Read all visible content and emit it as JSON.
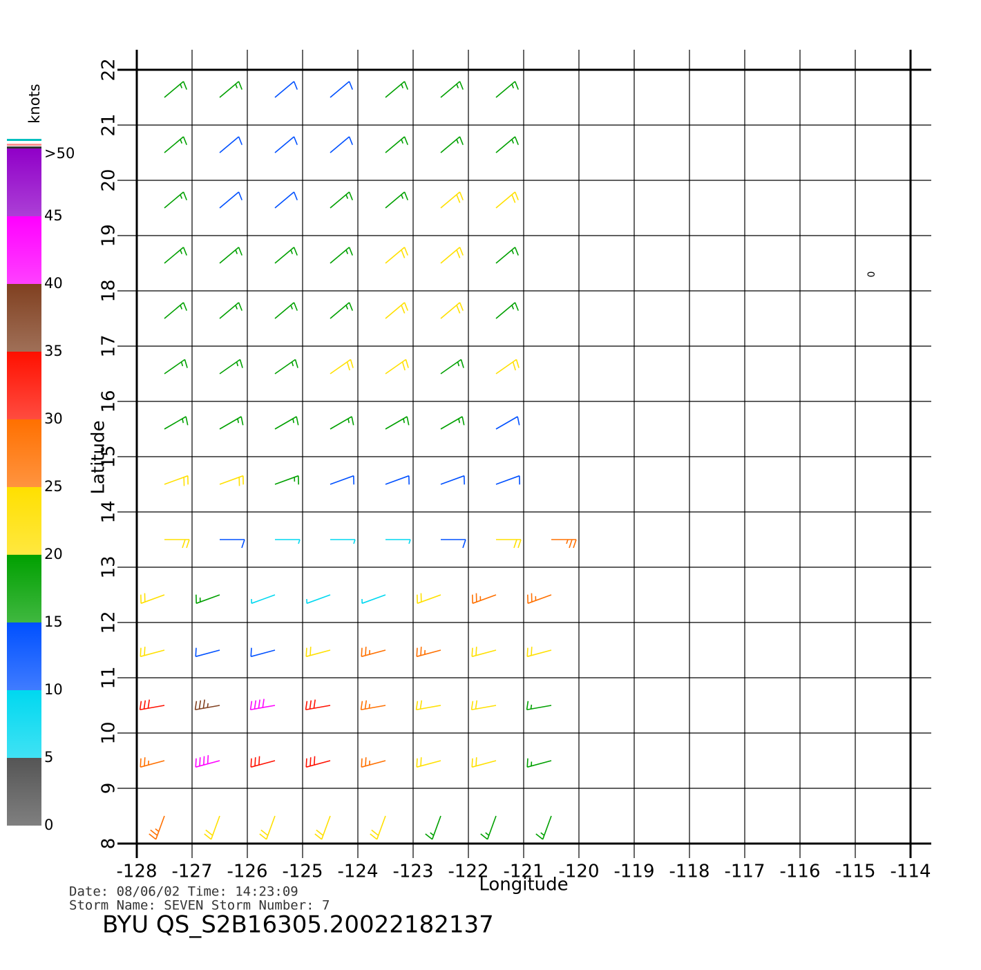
{
  "chart_data": {
    "type": "wind-barbs",
    "xlabel": "Longitude",
    "ylabel": "Latitude",
    "xlim": [
      -128,
      -114
    ],
    "ylim": [
      8,
      22
    ],
    "xticks": [
      -128,
      -127,
      -126,
      -125,
      -124,
      -123,
      -122,
      -121,
      -120,
      -119,
      -118,
      -117,
      -116,
      -115,
      -114
    ],
    "yticks": [
      8,
      9,
      10,
      11,
      12,
      13,
      14,
      15,
      16,
      17,
      18,
      19,
      20,
      21,
      22
    ],
    "grid": true,
    "colorbar": {
      "label": "knots",
      "lim": [
        0,
        50
      ],
      "ticks": [
        0,
        5,
        10,
        15,
        20,
        25,
        30,
        35,
        40,
        {
          "value": 50,
          "label": ">50"
        }
      ],
      "extra_ticks": [
        45
      ],
      "colors": [
        "#555555",
        "#00d8f0",
        "#0050ff",
        "#00a000",
        "#ffe000",
        "#ff7000",
        "#ff1000",
        "#804020",
        "#ff00ff",
        "#9000c8"
      ]
    },
    "x": [
      -127.5,
      -126.5,
      -125.5,
      -124.5,
      -123.5,
      -122.5,
      -121.5,
      -120.5
    ],
    "rows": [
      {
        "lat": 21.5,
        "direction": 50,
        "speed": [
          17,
          16,
          13,
          14,
          16,
          17,
          17,
          null
        ]
      },
      {
        "lat": 20.5,
        "direction": 50,
        "speed": [
          17,
          13,
          12,
          14,
          17,
          18,
          17,
          null
        ]
      },
      {
        "lat": 19.5,
        "direction": 50,
        "speed": [
          17,
          14,
          13,
          16,
          18,
          21,
          24,
          null
        ]
      },
      {
        "lat": 18.5,
        "direction": 50,
        "speed": [
          17,
          16,
          17,
          17,
          21,
          22,
          19,
          null
        ]
      },
      {
        "lat": 17.5,
        "direction": 50,
        "speed": [
          17,
          18,
          18,
          19,
          21,
          20,
          18,
          null
        ]
      },
      {
        "lat": 16.5,
        "direction": 55,
        "speed": [
          17,
          19,
          18,
          21,
          21,
          18,
          20,
          null
        ]
      },
      {
        "lat": 15.5,
        "direction": 60,
        "speed": [
          17,
          17,
          18,
          17,
          16,
          16,
          14,
          null
        ]
      },
      {
        "lat": 14.5,
        "direction": 70,
        "speed": [
          22,
          24,
          17,
          14,
          12,
          11,
          10,
          null
        ]
      },
      {
        "lat": 13.5,
        "direction": 90,
        "speed": [
          21,
          14,
          9,
          7,
          7,
          11,
          23,
          28
        ]
      },
      {
        "lat": 12.5,
        "direction": 250,
        "speed": [
          24,
          18,
          8,
          8,
          9,
          24,
          29,
          25
        ]
      },
      {
        "lat": 11.5,
        "direction": 255,
        "speed": [
          20,
          14,
          12,
          22,
          29,
          27,
          23,
          20
        ]
      },
      {
        "lat": 10.5,
        "direction": 260,
        "speed": [
          30,
          38,
          42,
          31,
          25,
          22,
          20,
          18
        ]
      },
      {
        "lat": 9.5,
        "direction": 255,
        "speed": [
          27,
          40,
          32,
          30,
          29,
          24,
          20,
          17
        ]
      },
      {
        "lat": 8.5,
        "direction": 200,
        "speed": [
          26,
          22,
          20,
          21,
          22,
          19,
          17,
          17
        ]
      }
    ],
    "annotation": {
      "text": "0",
      "lon": -114.7,
      "lat": 18.3
    },
    "footer": {
      "line1": "Date: 08/06/02   Time: 14:23:09",
      "line2": "Storm  Name:  SEVEN    Storm  Number: 7",
      "title": "BYU  QS_S2B16305.20022182137"
    }
  }
}
